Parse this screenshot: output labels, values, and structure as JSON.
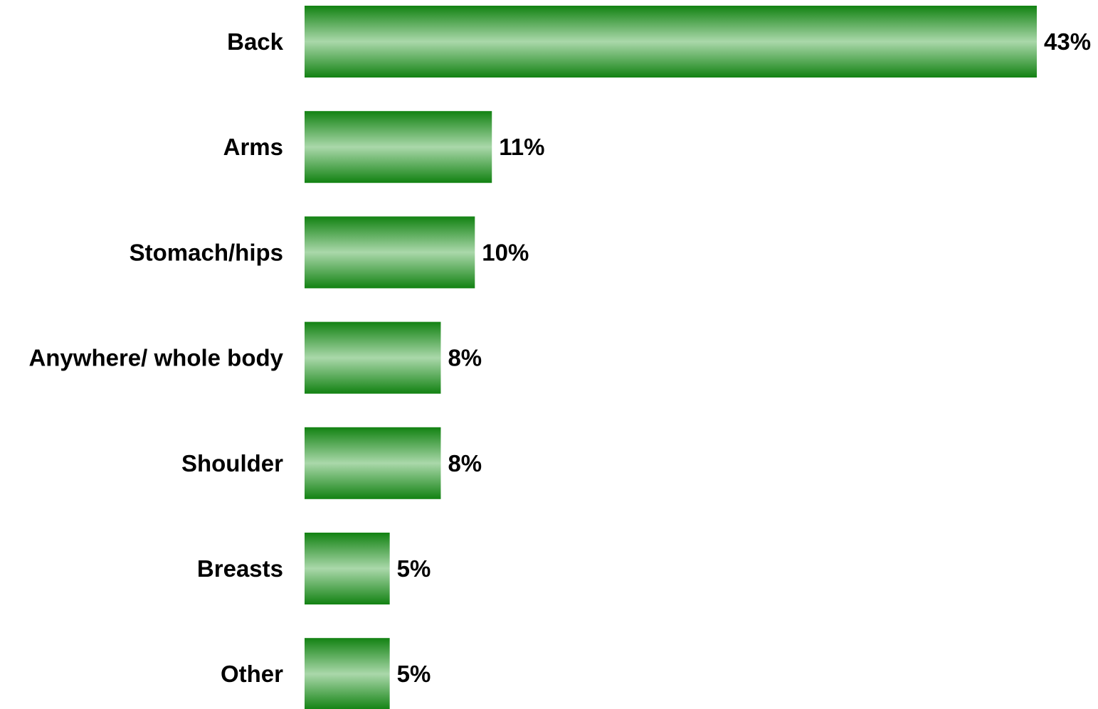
{
  "chart_data": {
    "type": "bar",
    "orientation": "horizontal",
    "categories": [
      "Back",
      "Arms",
      "Stomach/hips",
      "Anywhere/ whole body",
      "Shoulder",
      "Breasts",
      "Other"
    ],
    "values": [
      43,
      11,
      10,
      8,
      8,
      5,
      5
    ],
    "value_labels": [
      "43%",
      "11%",
      "10%",
      "8%",
      "8%",
      "5%",
      "5%"
    ],
    "unit": "%",
    "title": "",
    "xlabel": "",
    "ylabel": "",
    "xlim": [
      0,
      43
    ],
    "grid": false,
    "legend": "none",
    "bar_colors": {
      "edge": "#128212",
      "center": "#aad8aa"
    }
  }
}
